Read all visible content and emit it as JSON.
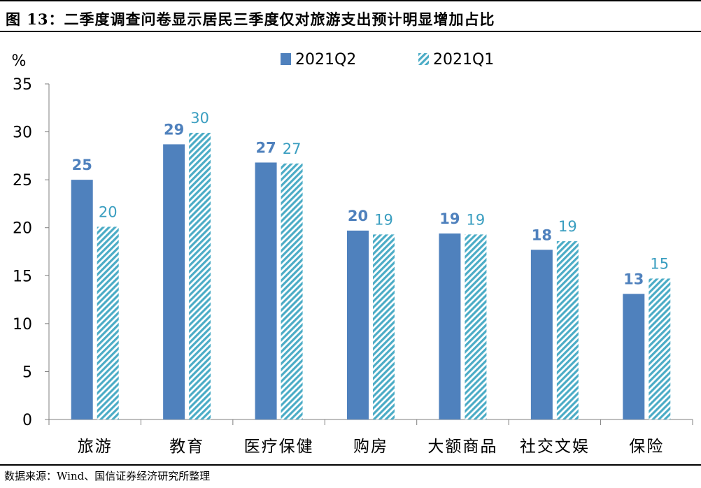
{
  "title": "图 13：二季度调查问卷显示居民三季度仅对旅游支出预计明显增加占比",
  "source": "数据来源：Wind、国信证券经济研究所整理",
  "colors": {
    "series_1": "#4f81bd",
    "series_2_stripe": "#4bacc6",
    "label_2": "#3a9ec0",
    "axis": "#7f7f7f"
  },
  "chart_data": {
    "type": "bar",
    "title": "",
    "xlabel": "",
    "ylabel": "%",
    "ylim": [
      0,
      35
    ],
    "yticks": [
      0,
      5,
      10,
      15,
      20,
      25,
      30,
      35
    ],
    "grid": false,
    "legend_position": "top",
    "categories": [
      "旅游",
      "教育",
      "医疗保健",
      "购房",
      "大额商品",
      "社交文娱",
      "保险"
    ],
    "series": [
      {
        "name": "2021Q2",
        "values": [
          25,
          28.7,
          26.8,
          19.7,
          19.4,
          17.7,
          13.1
        ],
        "labels": [
          "25",
          "29",
          "27",
          "20",
          "19",
          "18",
          "13"
        ],
        "pattern": "solid"
      },
      {
        "name": "2021Q1",
        "values": [
          20.1,
          29.9,
          26.7,
          19.3,
          19.3,
          18.6,
          14.7
        ],
        "labels": [
          "20",
          "30",
          "27",
          "19",
          "19",
          "19",
          "15"
        ],
        "pattern": "hatched"
      }
    ]
  }
}
